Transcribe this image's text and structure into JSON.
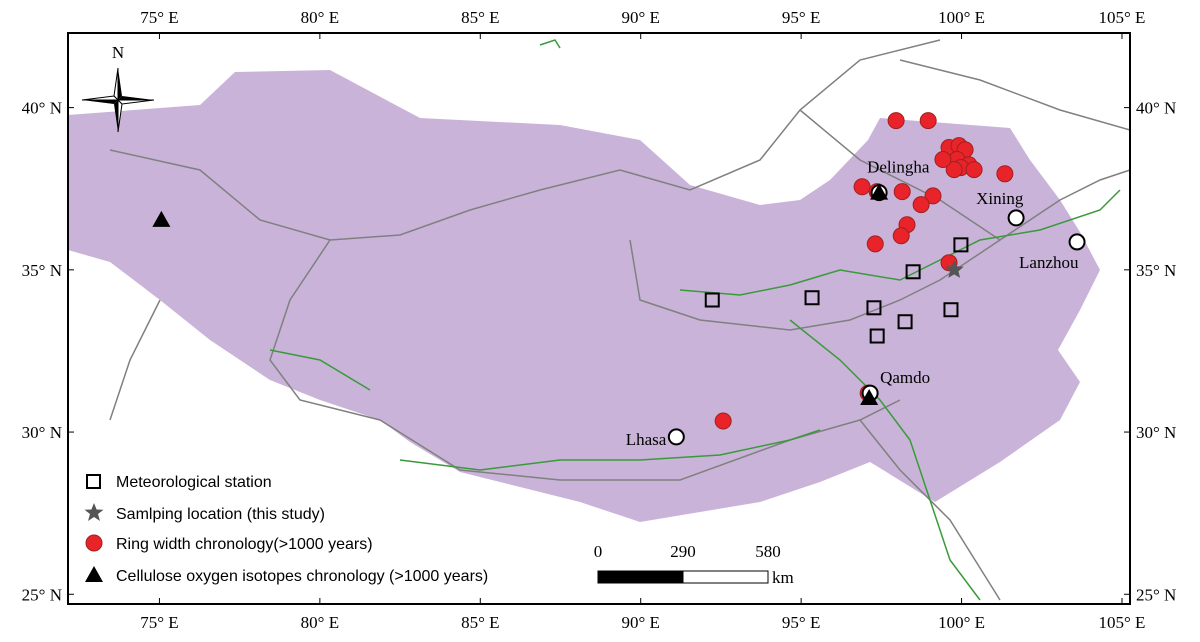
{
  "map": {
    "xlim": [
      72.15,
      105.25
    ],
    "ylim": [
      24.7,
      42.3
    ],
    "xticks": [
      {
        "value": 75,
        "label": "75° E"
      },
      {
        "value": 80,
        "label": "80° E"
      },
      {
        "value": 85,
        "label": "85° E"
      },
      {
        "value": 90,
        "label": "90° E"
      },
      {
        "value": 95,
        "label": "95° E"
      },
      {
        "value": 100,
        "label": "100° E"
      },
      {
        "value": 105,
        "label": "105° E"
      }
    ],
    "yticks": [
      {
        "value": 25,
        "label": "25° N"
      },
      {
        "value": 30,
        "label": "30° N"
      },
      {
        "value": 35,
        "label": "35° N"
      },
      {
        "value": 40,
        "label": "40° N"
      }
    ],
    "compass": "N",
    "legend": [
      "Meteorological station",
      "Samlping location (this study)",
      "Ring width chronology(>1000 years)",
      "Cellulose oxygen isotopes chronology (>1000 years)"
    ],
    "scale_bar": {
      "labels": [
        0,
        290,
        580
      ],
      "unit": "km"
    },
    "stations": [
      [
        92.23,
        34.07
      ],
      [
        95.34,
        34.14
      ],
      [
        97.27,
        33.83
      ],
      [
        98.24,
        33.4
      ],
      [
        97.37,
        32.96
      ],
      [
        98.49,
        34.94
      ],
      [
        99.67,
        33.77
      ],
      [
        99.98,
        35.77
      ]
    ],
    "sampling_location": [
      99.77,
      35.0
    ],
    "ring_width_sites": [
      [
        97.96,
        39.6
      ],
      [
        98.96,
        39.6
      ],
      [
        99.61,
        38.77
      ],
      [
        99.92,
        38.83
      ],
      [
        100.11,
        38.7
      ],
      [
        99.86,
        38.4
      ],
      [
        100.23,
        38.24
      ],
      [
        99.98,
        38.15
      ],
      [
        100.39,
        38.09
      ],
      [
        99.77,
        38.09
      ],
      [
        99.42,
        38.4
      ],
      [
        101.35,
        37.96
      ],
      [
        96.9,
        37.56
      ],
      [
        97.37,
        37.41
      ],
      [
        98.15,
        37.41
      ],
      [
        99.11,
        37.28
      ],
      [
        98.74,
        37.01
      ],
      [
        98.3,
        36.39
      ],
      [
        98.12,
        36.05
      ],
      [
        97.31,
        35.8
      ],
      [
        99.61,
        35.22
      ],
      [
        97.09,
        31.2
      ],
      [
        92.57,
        30.34
      ]
    ],
    "isotope_sites": [
      [
        75.06,
        36.54
      ],
      [
        97.43,
        37.38
      ],
      [
        97.12,
        31.05
      ]
    ],
    "cities": [
      {
        "name": "Lhasa",
        "lon": 91.11,
        "lat": 29.85
      },
      {
        "name": "Qamdo",
        "lon": 97.15,
        "lat": 31.2
      },
      {
        "name": "Delingha",
        "lon": 97.43,
        "lat": 37.38
      },
      {
        "name": "Xining",
        "lon": 101.7,
        "lat": 36.6
      },
      {
        "name": "Lanzhou",
        "lon": 103.6,
        "lat": 35.86
      }
    ]
  }
}
